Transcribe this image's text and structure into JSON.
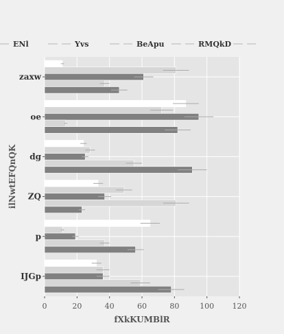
{
  "chart_data": {
    "type": "bar",
    "orientation": "horizontal",
    "title": "",
    "xlabel": "fXkKUMBlR",
    "ylabel": "ilNwtEFQnQK",
    "xlim": [
      0,
      120
    ],
    "xticks": [
      "0",
      "20",
      "40",
      "60",
      "80",
      "100",
      "120"
    ],
    "categories": [
      "zaxw",
      "oe",
      "dg",
      "ZQ",
      "p",
      "IJGp"
    ],
    "grid": true,
    "legend_position": "top",
    "series": [
      {
        "name": "ENl",
        "color": "#ffffff",
        "values": [
          11,
          87,
          24,
          33,
          65,
          32
        ],
        "errors": [
          1,
          8,
          2,
          3,
          6,
          3
        ]
      },
      {
        "name": "Yvs",
        "color": "#d6d6d6",
        "values": [
          81,
          72,
          28,
          49,
          11,
          36
        ],
        "errors": [
          8,
          7,
          3,
          5,
          1,
          4
        ]
      },
      {
        "name": "BeApu",
        "color": "#808080",
        "values": [
          61,
          95,
          25,
          37,
          19,
          36
        ],
        "errors": [
          6,
          9,
          2,
          4,
          2,
          4
        ]
      },
      {
        "name": "RMQkD",
        "color": "#d6d6d6",
        "values": [
          37,
          13,
          55,
          81,
          37,
          59
        ],
        "errors": [
          3,
          1,
          5,
          8,
          3,
          6
        ]
      },
      {
        "name": "",
        "color": "#808080",
        "values": [
          46,
          82,
          91,
          23,
          56,
          78
        ],
        "errors": [
          5,
          8,
          9,
          2,
          5,
          8
        ]
      }
    ]
  }
}
